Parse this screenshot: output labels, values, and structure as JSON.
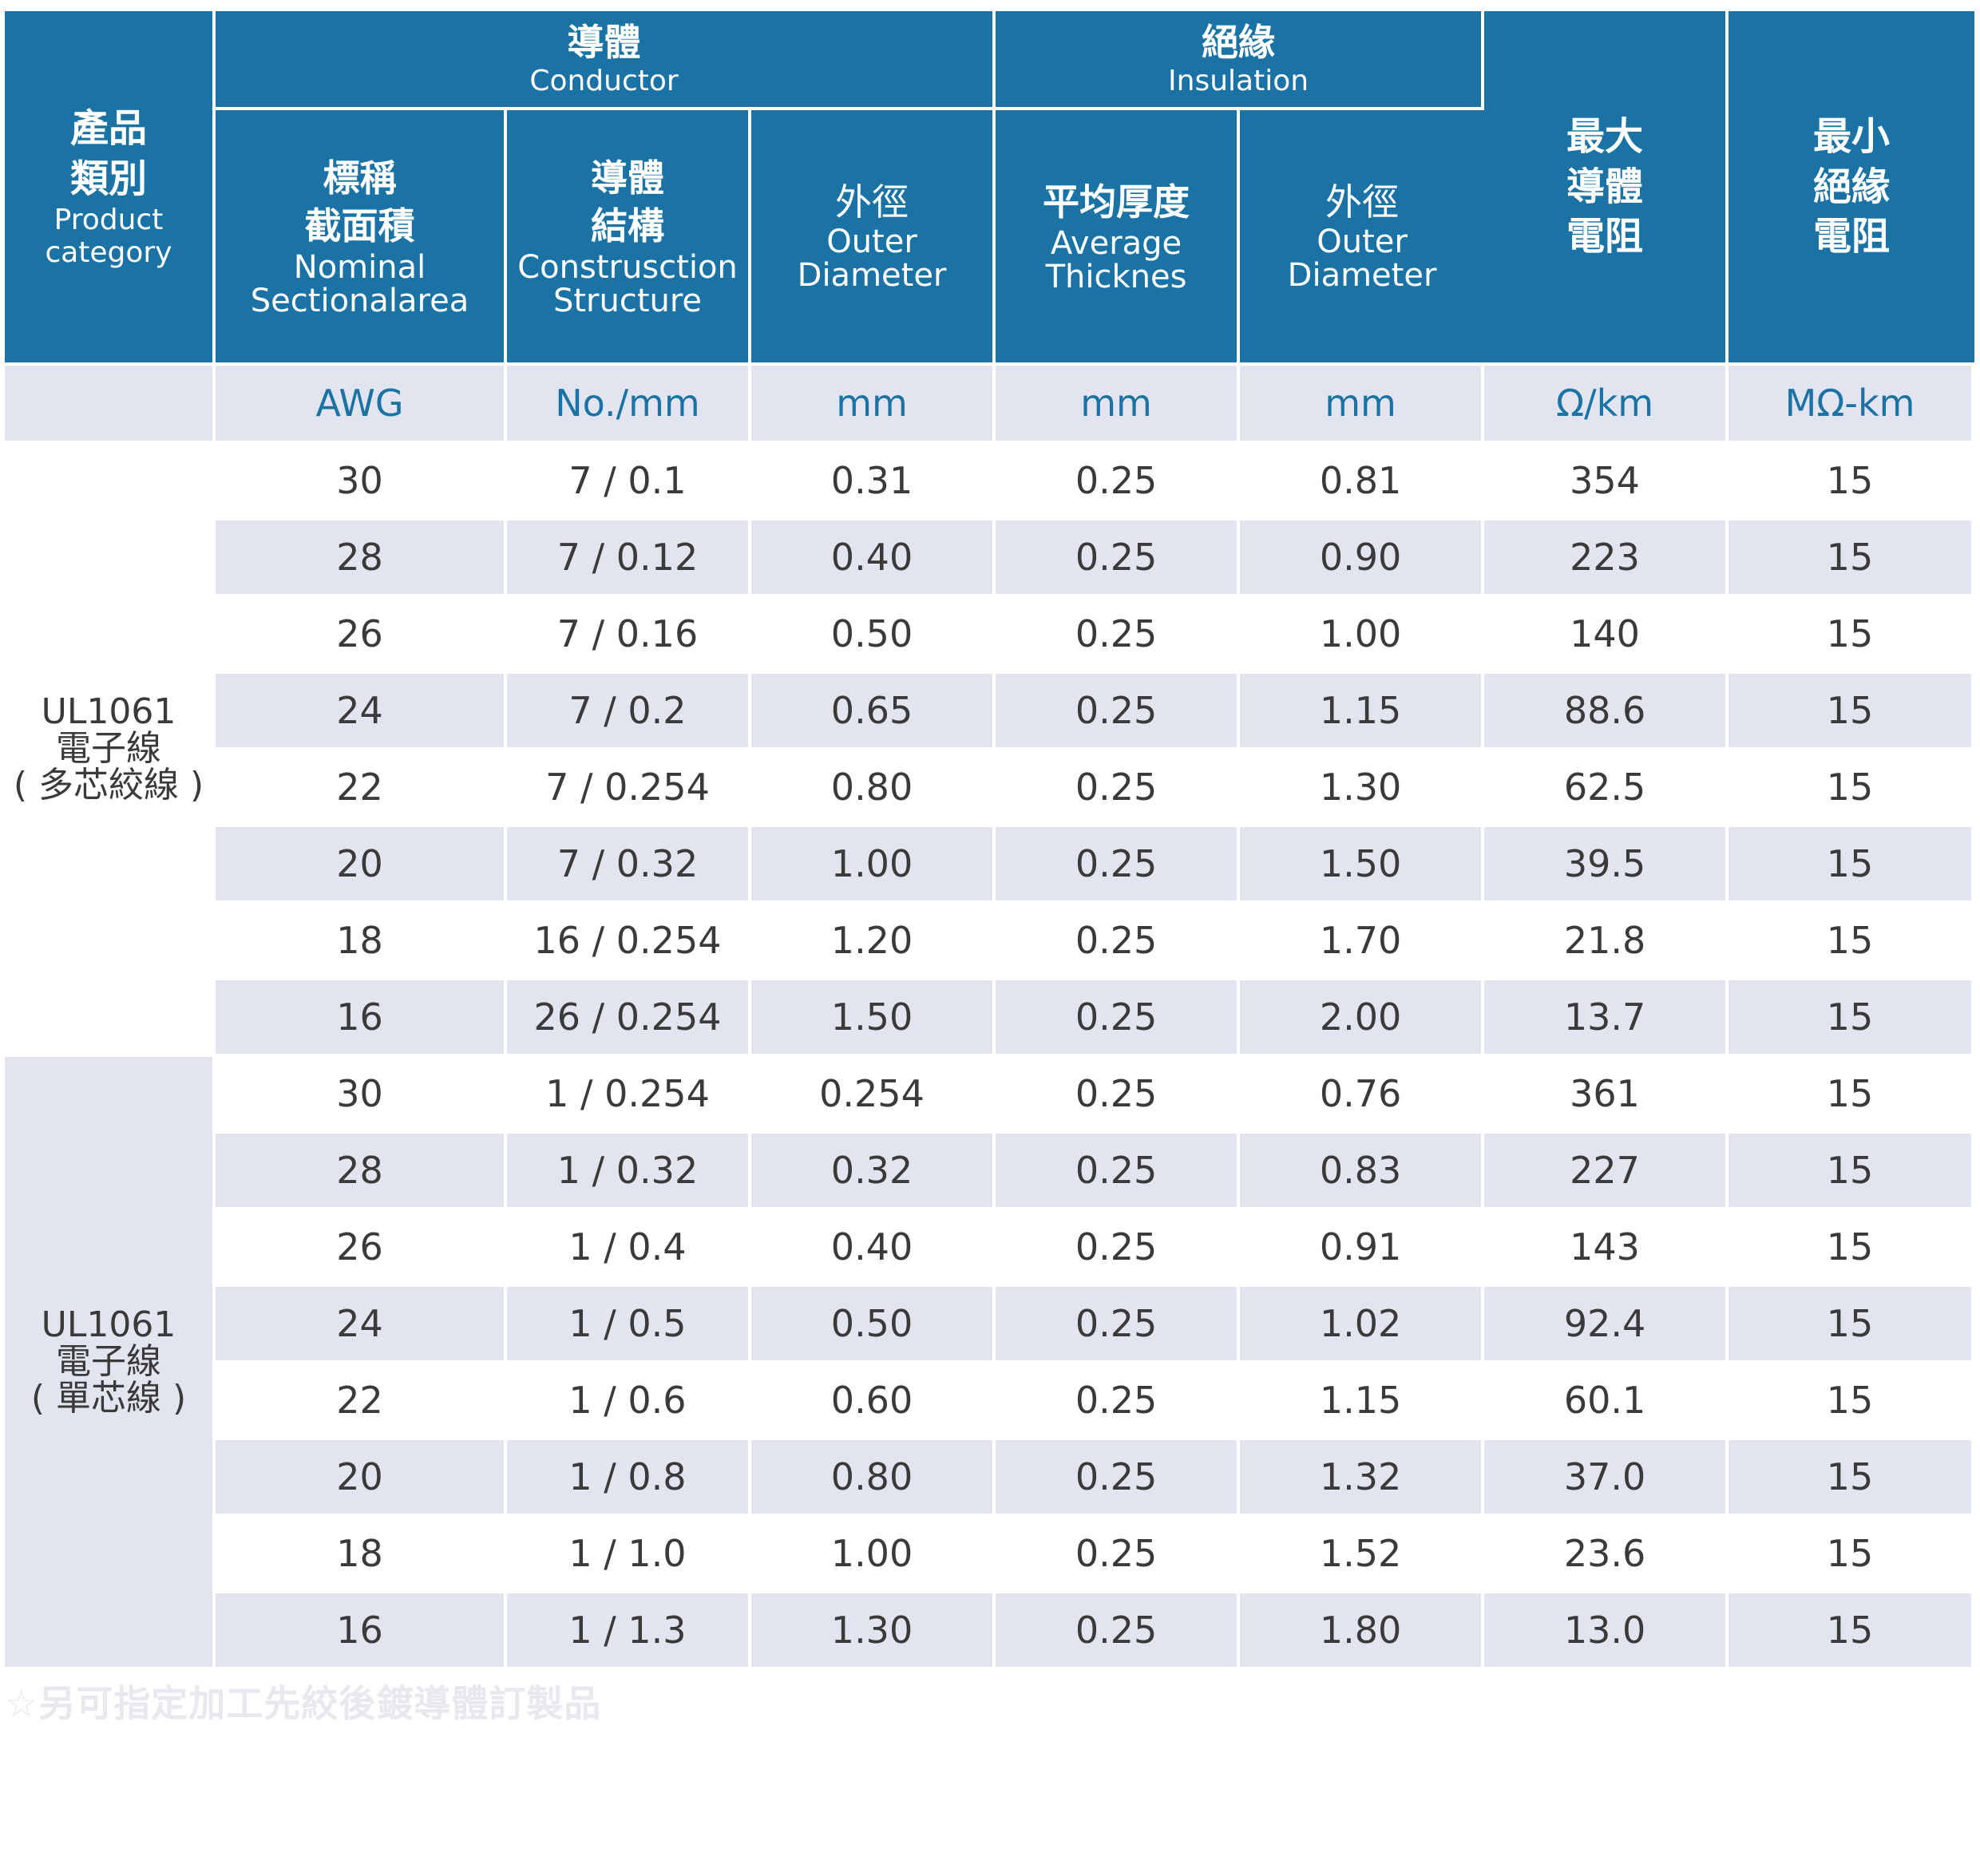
{
  "header": {
    "category": {
      "zh_line1": "產品",
      "zh_line2": "類別",
      "en_line1": "Product",
      "en_line2": "category"
    },
    "conductor": {
      "zh": "導體",
      "en": "Conductor"
    },
    "insulation": {
      "zh": "絕緣",
      "en": "Insulation"
    },
    "max_resistance": {
      "line1": "最大",
      "line2": "導體",
      "line3": "電阻"
    },
    "min_insulation": {
      "line1": "最小",
      "line2": "絕緣",
      "line3": "電阻"
    },
    "nominal_area": {
      "zh_line1": "標稱",
      "zh_line2": "截面積",
      "en_line1": "Nominal",
      "en_line2": "Sectionalarea"
    },
    "structure": {
      "zh_line1": "導體",
      "zh_line2": "結構",
      "en_line1": "Construsction",
      "en_line2": "Structure"
    },
    "cond_outer": {
      "zh": "外徑",
      "en_line1": "Outer",
      "en_line2": "Diameter"
    },
    "avg_thickness": {
      "zh": "平均厚度",
      "en_line1": "Average",
      "en_line2": "Thicknes"
    },
    "ins_outer": {
      "zh": "外徑",
      "en_line1": "Outer",
      "en_line2": "Diameter"
    }
  },
  "units": [
    "AWG",
    "No./mm",
    "mm",
    "mm",
    "mm",
    "Ω/km",
    "MΩ-km"
  ],
  "categories": [
    {
      "line1": "UL1061",
      "line2": "電子線",
      "line3": "( 多芯絞線 )"
    },
    {
      "line1": "UL1061",
      "line2": "電子線",
      "line3": "( 單芯線 )"
    }
  ],
  "rows": [
    [
      "30",
      "7 / 0.1",
      "0.31",
      "0.25",
      "0.81",
      "354",
      "15"
    ],
    [
      "28",
      "7 / 0.12",
      "0.40",
      "0.25",
      "0.90",
      "223",
      "15"
    ],
    [
      "26",
      "7 / 0.16",
      "0.50",
      "0.25",
      "1.00",
      "140",
      "15"
    ],
    [
      "24",
      "7 / 0.2",
      "0.65",
      "0.25",
      "1.15",
      "88.6",
      "15"
    ],
    [
      "22",
      "7 / 0.254",
      "0.80",
      "0.25",
      "1.30",
      "62.5",
      "15"
    ],
    [
      "20",
      "7 /  0.32",
      "1.00",
      "0.25",
      "1.50",
      "39.5",
      "15"
    ],
    [
      "18",
      "16 / 0.254",
      "1.20",
      "0.25",
      "1.70",
      "21.8",
      "15"
    ],
    [
      "16",
      "26  / 0.254",
      "1.50",
      "0.25",
      "2.00",
      "13.7",
      "15"
    ],
    [
      "30",
      "1 / 0.254",
      "0.254",
      "0.25",
      "0.76",
      "361",
      "15"
    ],
    [
      "28",
      "1 / 0.32",
      "0.32",
      "0.25",
      "0.83",
      "227",
      "15"
    ],
    [
      "26",
      "1 / 0.4",
      "0.40",
      "0.25",
      "0.91",
      "143",
      "15"
    ],
    [
      "24",
      "1 / 0.5",
      "0.50",
      "0.25",
      "1.02",
      "92.4",
      "15"
    ],
    [
      "22",
      "1 / 0.6",
      "0.60",
      "0.25",
      "1.15",
      "60.1",
      "15"
    ],
    [
      "20",
      "1 / 0.8",
      "0.80",
      "0.25",
      "1.32",
      "37.0",
      "15"
    ],
    [
      "18",
      "1 / 1.0",
      "1.00",
      "0.25",
      "1.52",
      "23.6",
      "15"
    ],
    [
      "16",
      "1 / 1.3",
      "1.30",
      "0.25",
      "1.80",
      "13.0",
      "15"
    ]
  ],
  "footnote": "☆另可指定加工先絞後鍍導體訂製品",
  "colors": {
    "header_bg": "#1a73a4",
    "stripe_bg": "#e2e5ef",
    "unit_text": "#1a73a4",
    "body_text": "#3a3a3a"
  }
}
